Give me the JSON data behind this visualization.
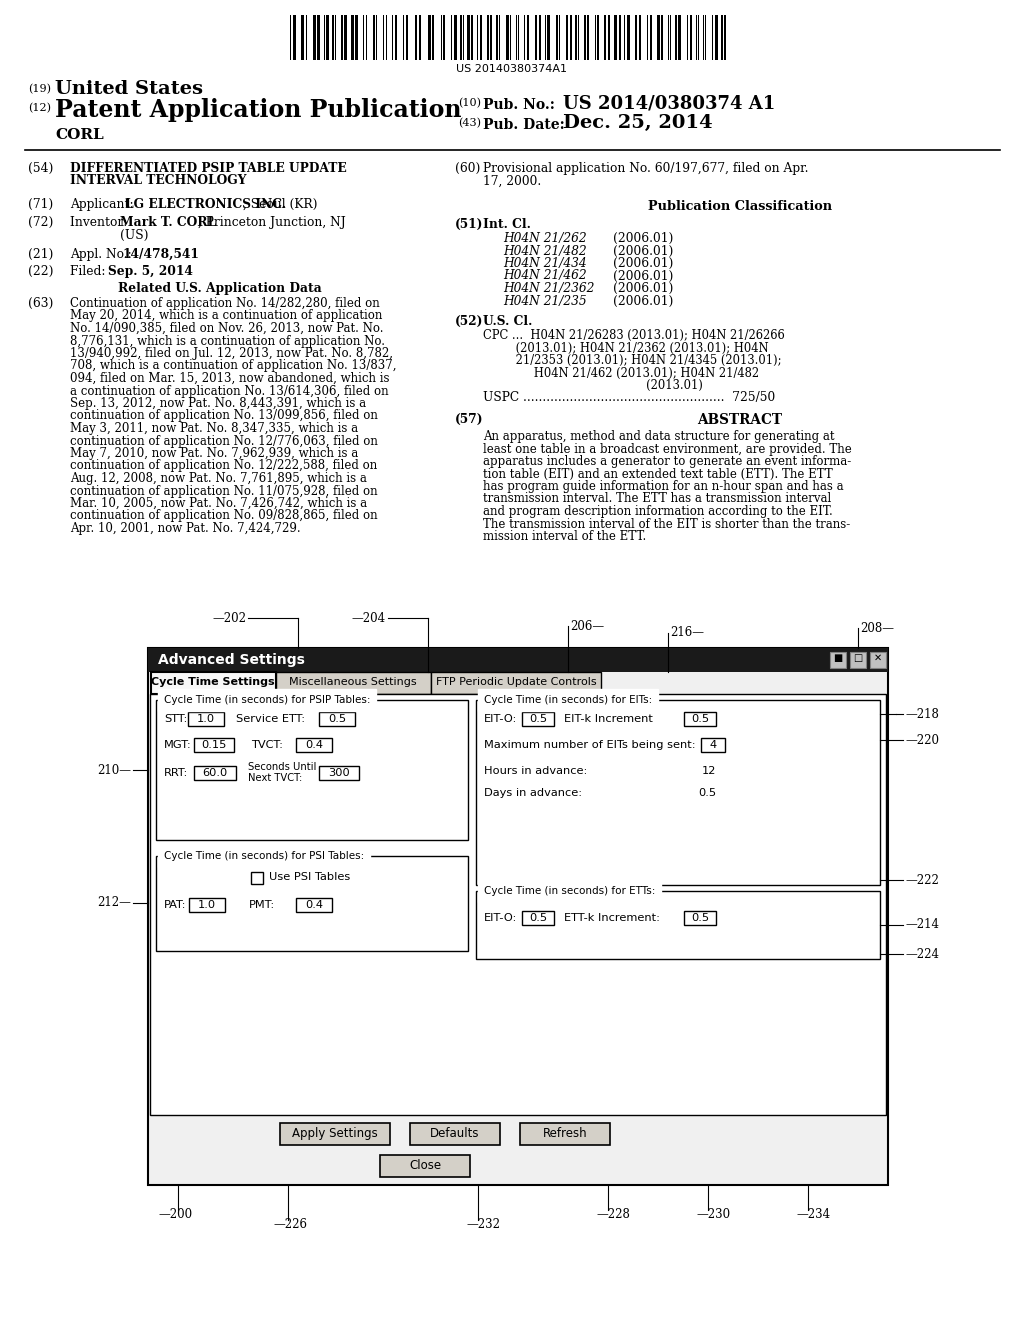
{
  "barcode_text": "US 20140380374A1",
  "diagram": {
    "window_title": "Advanced Settings",
    "tab1": "Cycle Time Settings",
    "tab2": "Miscellaneous Settings",
    "tab3": "FTP Periodic Update Controls",
    "psip_section_label": "Cycle Time (in seconds) for PSIP Tables:",
    "eit_section_label": "Cycle Time (in seconds) for EITs:",
    "psi_section_label": "Cycle Time (in seconds) for PSI Tables:",
    "ett_section_label": "Cycle Time (in seconds) for ETTs:",
    "stt_label": "STT:",
    "stt_val": "1.0",
    "service_ett_label": "Service ETT:",
    "service_ett_val": "0.5",
    "eito_label1": "EIT-O:",
    "eito_val1": "0.5",
    "eitk_inc_label": "EIT-k Increment",
    "eitk_inc_val": "0.5",
    "mgt_label": "MGT:",
    "mgt_val": "0.15",
    "tvct_label": "TVCT:",
    "tvct_val": "0.4",
    "max_eits_label": "Maximum number of EITs being sent:",
    "max_eits_val": "4",
    "rrt_label": "RRT:",
    "rrt_val": "60.0",
    "sec_until_label": "Seconds Until",
    "next_tvct_label": "Next TVCT:",
    "next_tvct_val": "300",
    "hours_label": "Hours in advance:",
    "hours_val": "12",
    "days_label": "Days in advance:",
    "days_val": "0.5",
    "use_psi_label": "Use PSI Tables",
    "pat_label": "PAT:",
    "pat_val": "1.0",
    "pmt_label": "PMT:",
    "pmt_val": "0.4",
    "eito_label2": "EIT-O:",
    "eito_val2": "0.5",
    "ettk_inc_label": "ETT-k Increment:",
    "ettk_inc_val": "0.5",
    "apply_btn": "Apply Settings",
    "defaults_btn": "Defaults",
    "refresh_btn": "Refresh",
    "close_btn": "Close"
  }
}
